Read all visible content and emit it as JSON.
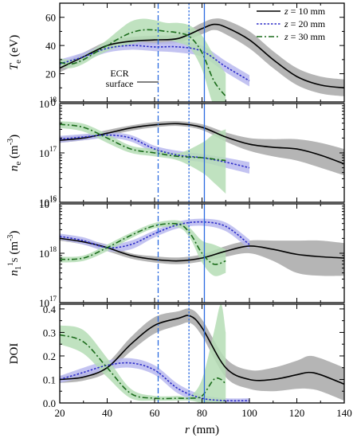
{
  "chart_data": [
    {
      "type": "line",
      "panel": "Te",
      "ylabel": "T_e (eV)",
      "ylabel_main": "T",
      "ylabel_sub": "e",
      "ylabel_unit": " (eV)",
      "xlim": [
        20,
        140
      ],
      "ylim": [
        0,
        70
      ],
      "yscale": "linear",
      "yticks": [
        0,
        20,
        40,
        60
      ],
      "ytick_labels": [
        "0",
        "20",
        "40",
        "60"
      ],
      "annotation": [
        "ECR",
        "surface"
      ],
      "legend": {
        "placement": "top-right",
        "entries": [
          {
            "var": "z",
            "text": " = 10 mm"
          },
          {
            "var": "z",
            "text": " = 20 mm"
          },
          {
            "var": "z",
            "text": " = 30 mm"
          }
        ]
      },
      "series": [
        {
          "name": "z = 10 mm",
          "color": "#000000",
          "style": "solid",
          "band": "#a8a8a8",
          "x": [
            20,
            30,
            40,
            50,
            60,
            70,
            80,
            85,
            90,
            100,
            110,
            120,
            130,
            140
          ],
          "y": [
            24,
            32,
            40,
            43,
            44,
            45,
            52,
            55,
            53,
            44,
            30,
            18,
            12,
            10
          ],
          "err": [
            3,
            3,
            3,
            3,
            3,
            3,
            4,
            4,
            5,
            6,
            6,
            6,
            6,
            6
          ]
        },
        {
          "name": "z = 20 mm",
          "color": "#2d2dc8",
          "style": "dotted",
          "band": "#b8b8ee",
          "x": [
            20,
            30,
            40,
            50,
            60,
            70,
            80,
            90,
            100
          ],
          "y": [
            27,
            32,
            38,
            40,
            39,
            39,
            36,
            25,
            15
          ],
          "err": [
            3,
            3,
            3,
            3,
            3,
            4,
            4,
            4,
            4
          ]
        },
        {
          "name": "z = 30 mm",
          "color": "#1a6b1a",
          "style": "dashdot",
          "band": "#b5ddb5",
          "x": [
            20,
            25,
            30,
            35,
            40,
            45,
            50,
            55,
            60,
            65,
            70,
            75,
            80,
            85,
            90
          ],
          "y": [
            28,
            27,
            30,
            35,
            40,
            45,
            49,
            51,
            51,
            50,
            49,
            46,
            35,
            15,
            4
          ],
          "err": [
            3,
            3,
            3,
            3,
            4,
            6,
            8,
            8,
            7,
            6,
            7,
            8,
            12,
            18,
            16
          ]
        }
      ]
    },
    {
      "type": "line",
      "panel": "ne",
      "ylabel": "n_e (m^-3)",
      "ylabel_main": "n",
      "ylabel_sub": "e",
      "ylabel_unit": " (m",
      "ylabel_exp": "-3",
      "ylabel_close": ")",
      "xlim": [
        20,
        140
      ],
      "ylim": [
        1e+16,
        1e+18
      ],
      "yscale": "log",
      "yticks": [
        1e+16,
        1e+17,
        1e+18
      ],
      "ytick_labels": [
        {
          "base": "10",
          "exp": "16"
        },
        {
          "base": "10",
          "exp": "17"
        },
        {
          "base": "10",
          "exp": "18"
        }
      ],
      "series": [
        {
          "name": "z = 10 mm",
          "color": "#000000",
          "style": "solid",
          "band": "#a8a8a8",
          "x": [
            20,
            30,
            40,
            50,
            60,
            70,
            80,
            90,
            100,
            110,
            120,
            130,
            140
          ],
          "y": [
            1.8e+17,
            2e+17,
            2.5e+17,
            3.2e+17,
            3.7e+17,
            3.9e+17,
            3.3e+17,
            2.1e+17,
            1.5e+17,
            1.3e+17,
            1.2e+17,
            9e+16,
            6e+16
          ],
          "lo": [
            1.6e+17,
            1.8e+17,
            2.2e+17,
            2.8e+17,
            3.3e+17,
            3.5e+17,
            2.9e+17,
            1.7e+17,
            1.1e+17,
            8.5e+16,
            7e+16,
            5e+16,
            3.5e+16
          ],
          "hi": [
            2.1e+17,
            2.3e+17,
            2.9e+17,
            3.6e+17,
            4.2e+17,
            4.4e+17,
            3.8e+17,
            2.6e+17,
            2e+17,
            1.9e+17,
            1.9e+17,
            1.6e+17,
            1.2e+17
          ]
        },
        {
          "name": "z = 20 mm",
          "color": "#2d2dc8",
          "style": "dotted",
          "band": "#b8b8ee",
          "x": [
            20,
            30,
            40,
            50,
            60,
            70,
            80,
            90,
            100
          ],
          "y": [
            1.9e+17,
            2.1e+17,
            2.3e+17,
            2e+17,
            1.2e+17,
            9e+16,
            8e+16,
            6.5e+16,
            5e+16
          ],
          "lo": [
            1.6e+17,
            1.8e+17,
            2e+17,
            1.7e+17,
            1e+17,
            7.5e+16,
            6.5e+16,
            5e+16,
            3.8e+16
          ],
          "hi": [
            2.2e+17,
            2.4e+17,
            2.6e+17,
            2.3e+17,
            1.4e+17,
            1.1e+17,
            9.5e+16,
            8e+16,
            6.5e+16
          ]
        },
        {
          "name": "z = 30 mm",
          "color": "#1a6b1a",
          "style": "dashdot",
          "band": "#b5ddb5",
          "x": [
            20,
            30,
            40,
            50,
            60,
            70,
            80,
            85,
            90
          ],
          "y": [
            3.8e+17,
            3.3e+17,
            2e+17,
            1.2e+17,
            1e+17,
            8.5e+16,
            8e+16,
            7.5e+16,
            7e+16
          ],
          "lo": [
            3.2e+17,
            2.7e+17,
            1.6e+17,
            1e+17,
            8.5e+16,
            7e+16,
            4e+16,
            2.5e+16,
            1.5e+16
          ],
          "hi": [
            4.4e+17,
            3.9e+17,
            2.4e+17,
            1.4e+17,
            1.2e+17,
            1e+17,
            1.6e+17,
            2.4e+17,
            3e+17
          ]
        }
      ]
    },
    {
      "type": "line",
      "panel": "n1S",
      "ylabel": "n_1S (m^-3)",
      "ylabel_main": "n",
      "ylabel_sub": "1",
      "ylabel_sup": "1",
      "ylabel_s": "S",
      "ylabel_unit": " (m",
      "ylabel_exp": "-3",
      "ylabel_close": ")",
      "xlim": [
        20,
        140
      ],
      "ylim": [
        1e+17,
        1e+19
      ],
      "yscale": "log",
      "yticks": [
        1e+17,
        1e+18,
        1e+19
      ],
      "ytick_labels": [
        {
          "base": "10",
          "exp": "17"
        },
        {
          "base": "10",
          "exp": "18"
        },
        {
          "base": "10",
          "exp": "19"
        }
      ],
      "series": [
        {
          "name": "z = 10 mm",
          "color": "#000000",
          "style": "solid",
          "band": "#a8a8a8",
          "x": [
            20,
            30,
            40,
            50,
            60,
            70,
            80,
            90,
            100,
            110,
            120,
            130,
            140
          ],
          "y": [
            2e+18,
            1.7e+18,
            1.3e+18,
            9e+17,
            7.5e+17,
            7e+17,
            8e+17,
            1.1e+18,
            1.4e+18,
            1.2e+18,
            9.5e+17,
            8.5e+17,
            8e+17
          ],
          "lo": [
            1.8e+18,
            1.5e+18,
            1.1e+18,
            7.8e+17,
            6.5e+17,
            6e+17,
            6.8e+17,
            8.5e+17,
            1e+18,
            7e+17,
            4e+17,
            3.5e+17,
            3.5e+17
          ],
          "hi": [
            2.2e+18,
            1.9e+18,
            1.5e+18,
            1e+18,
            8.7e+17,
            8.2e+17,
            9.5e+17,
            1.4e+18,
            1.8e+18,
            1.8e+18,
            1.8e+18,
            1.8e+18,
            1.6e+18
          ]
        },
        {
          "name": "z = 20 mm",
          "color": "#2d2dc8",
          "style": "dotted",
          "band": "#b8b8ee",
          "x": [
            20,
            30,
            40,
            50,
            60,
            70,
            80,
            90,
            100
          ],
          "y": [
            2.2e+18,
            1.8e+18,
            1.3e+18,
            1.5e+18,
            2.5e+18,
            3.8e+18,
            4.3e+18,
            3.5e+18,
            1.5e+18
          ],
          "lo": [
            1.9e+18,
            1.5e+18,
            1.1e+18,
            1.2e+18,
            2.1e+18,
            3.2e+18,
            3.6e+18,
            2.8e+18,
            1.2e+18
          ],
          "hi": [
            2.5e+18,
            2.1e+18,
            1.5e+18,
            1.8e+18,
            2.9e+18,
            4.4e+18,
            5e+18,
            4.2e+18,
            1.9e+18
          ]
        },
        {
          "name": "z = 30 mm",
          "color": "#1a6b1a",
          "style": "dashdot",
          "band": "#b5ddb5",
          "x": [
            20,
            30,
            40,
            50,
            60,
            70,
            75,
            80,
            85,
            90
          ],
          "y": [
            7.5e+17,
            8e+17,
            1.3e+18,
            2.3e+18,
            3.6e+18,
            3.9e+18,
            2.5e+18,
            1e+18,
            6e+17,
            7e+17
          ],
          "lo": [
            6.5e+17,
            7e+17,
            1.1e+18,
            2e+18,
            3.2e+18,
            3.3e+18,
            2e+18,
            6.5e+17,
            3.5e+17,
            4e+17
          ],
          "hi": [
            8.5e+17,
            9e+17,
            1.5e+18,
            2.6e+18,
            4.1e+18,
            4.6e+18,
            3.2e+18,
            1.8e+18,
            1.5e+18,
            1.2e+18
          ]
        }
      ]
    },
    {
      "type": "line",
      "panel": "DOI",
      "ylabel": "DOI",
      "xlabel_var": "r",
      "xlabel_unit": " (mm)",
      "xlim": [
        20,
        140
      ],
      "ylim": [
        0,
        0.42
      ],
      "yscale": "linear",
      "xticks": [
        20,
        40,
        60,
        80,
        100,
        120,
        140
      ],
      "yticks": [
        0.0,
        0.1,
        0.2,
        0.3,
        0.4
      ],
      "ytick_labels": [
        "0.0",
        "0.1",
        "0.2",
        "0.3",
        "0.4"
      ],
      "series": [
        {
          "name": "z = 10 mm",
          "color": "#000000",
          "style": "solid",
          "band": "#a8a8a8",
          "x": [
            20,
            30,
            40,
            50,
            60,
            70,
            75,
            80,
            90,
            100,
            110,
            120,
            125,
            130,
            140
          ],
          "y": [
            0.1,
            0.11,
            0.15,
            0.25,
            0.33,
            0.36,
            0.37,
            0.32,
            0.15,
            0.1,
            0.1,
            0.12,
            0.13,
            0.12,
            0.08
          ],
          "err": [
            0.015,
            0.015,
            0.02,
            0.03,
            0.035,
            0.03,
            0.03,
            0.035,
            0.04,
            0.04,
            0.05,
            0.06,
            0.07,
            0.07,
            0.07
          ]
        },
        {
          "name": "z = 20 mm",
          "color": "#2d2dc8",
          "style": "dotted",
          "band": "#b8b8ee",
          "x": [
            20,
            30,
            40,
            50,
            60,
            70,
            80,
            90,
            100
          ],
          "y": [
            0.1,
            0.13,
            0.16,
            0.17,
            0.14,
            0.06,
            0.02,
            0.01,
            0.01
          ],
          "err": [
            0.015,
            0.02,
            0.02,
            0.02,
            0.02,
            0.02,
            0.015,
            0.01,
            0.01
          ]
        },
        {
          "name": "z = 30 mm",
          "color": "#1a6b1a",
          "style": "dashdot",
          "band": "#b5ddb5",
          "x": [
            20,
            30,
            40,
            50,
            60,
            70,
            75,
            80,
            85,
            88,
            90
          ],
          "y": [
            0.29,
            0.26,
            0.15,
            0.04,
            0.02,
            0.02,
            0.02,
            0.03,
            0.1,
            0.1,
            0.08
          ],
          "lo": [
            0.25,
            0.21,
            0.11,
            0.02,
            0.01,
            0.01,
            0.01,
            0.0,
            0.0,
            0.0,
            0.0
          ],
          "hi": [
            0.33,
            0.31,
            0.19,
            0.06,
            0.03,
            0.03,
            0.03,
            0.1,
            0.3,
            0.42,
            0.3
          ]
        }
      ]
    }
  ],
  "vlines": [
    {
      "x": 61.5,
      "color": "#2a6ae0",
      "style": "dashdot"
    },
    {
      "x": 74.5,
      "color": "#2a6ae0",
      "style": "dotted"
    },
    {
      "x": 81,
      "color": "#2a6ae0",
      "style": "solid"
    }
  ]
}
